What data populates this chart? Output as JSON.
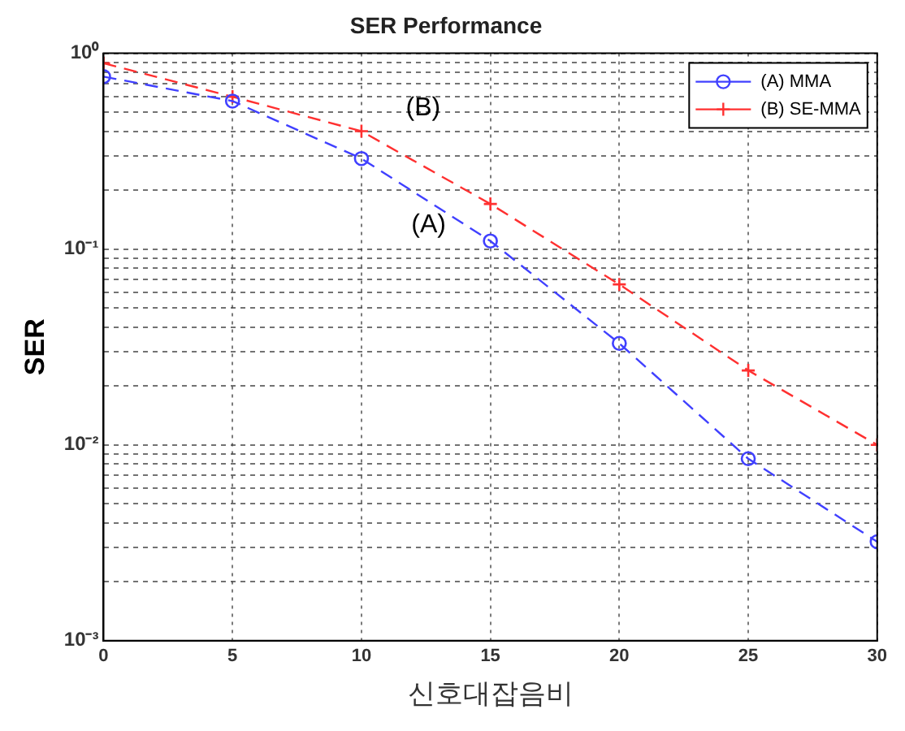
{
  "chart_data": {
    "type": "line",
    "title": "SER Performance",
    "xlabel": "신호대잡음비",
    "ylabel": "SER",
    "x": [
      0,
      5,
      10,
      15,
      20,
      25,
      30
    ],
    "series": [
      {
        "name": "(A) MMA",
        "color": "#4040ff",
        "marker": "circle",
        "line_style": "dashed",
        "values": [
          0.76,
          0.57,
          0.29,
          0.11,
          0.033,
          0.0085,
          0.0032
        ]
      },
      {
        "name": "(B) SE-MMA",
        "color": "#ff3030",
        "marker": "cross",
        "line_style": "dashed",
        "values": [
          0.89,
          0.6,
          0.4,
          0.17,
          0.066,
          0.024,
          0.01
        ]
      }
    ],
    "log": "y",
    "xlim": [
      0,
      30
    ],
    "xticks": [
      0,
      5,
      10,
      15,
      20,
      25,
      30
    ],
    "ylim": [
      0.001,
      1
    ],
    "yticks": [
      {
        "value": 0.001,
        "label": "10⁻³"
      },
      {
        "value": 0.002,
        "label": null
      },
      {
        "value": 0.003,
        "label": null
      },
      {
        "value": 0.004,
        "label": null
      },
      {
        "value": 0.005,
        "label": null
      },
      {
        "value": 0.006,
        "label": null
      },
      {
        "value": 0.007,
        "label": null
      },
      {
        "value": 0.008,
        "label": null
      },
      {
        "value": 0.009,
        "label": null
      },
      {
        "value": 0.01,
        "label": "10⁻²"
      },
      {
        "value": 0.02,
        "label": null
      },
      {
        "value": 0.03,
        "label": null
      },
      {
        "value": 0.04,
        "label": null
      },
      {
        "value": 0.05,
        "label": null
      },
      {
        "value": 0.06,
        "label": null
      },
      {
        "value": 0.07,
        "label": null
      },
      {
        "value": 0.08,
        "label": null
      },
      {
        "value": 0.09,
        "label": null
      },
      {
        "value": 0.1,
        "label": "10⁻¹"
      },
      {
        "value": 0.2,
        "label": null
      },
      {
        "value": 0.3,
        "label": null
      },
      {
        "value": 0.4,
        "label": null
      },
      {
        "value": 0.5,
        "label": null
      },
      {
        "value": 0.6,
        "label": null
      },
      {
        "value": 0.7,
        "label": null
      },
      {
        "value": 0.8,
        "label": null
      },
      {
        "value": 0.9,
        "label": null
      },
      {
        "value": 1,
        "label": "10⁰"
      }
    ],
    "grid": true,
    "legend": "top right",
    "annotations": [
      {
        "text": "(B)",
        "x": 10,
        "y": 0.4
      },
      {
        "text": "(A)",
        "x": 15,
        "y": 0.11
      }
    ]
  }
}
